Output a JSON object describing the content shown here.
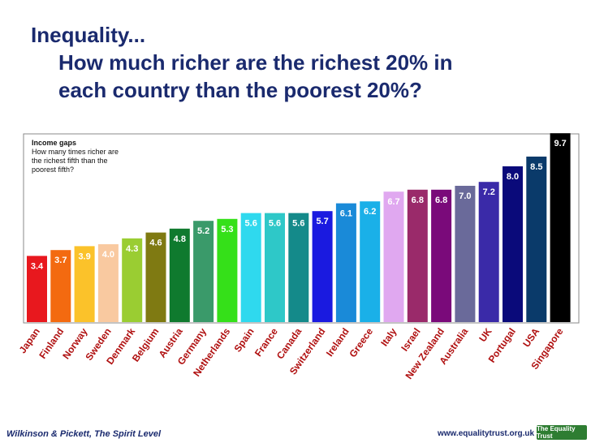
{
  "title": {
    "line1": "Inequality...",
    "line2": "How much richer are the richest 20% in",
    "line3": "each country than the poorest 20%?"
  },
  "legend": {
    "title": "Income gaps",
    "desc": "How many times richer are the richest fifth than the poorest fifth?"
  },
  "footer": {
    "source": "Wilkinson & Pickett, The Spirit Level",
    "url": "www.equalitytrust.org.uk",
    "logo": "The Equality Trust"
  },
  "chart_data": {
    "type": "bar",
    "title": "Income gaps",
    "ylabel": "",
    "xlabel": "",
    "ylim": [
      0,
      10
    ],
    "grid": false,
    "categories": [
      "Japan",
      "Finland",
      "Norway",
      "Sweden",
      "Denmark",
      "Belgium",
      "Austria",
      "Germany",
      "Netherlands",
      "Spain",
      "France",
      "Canada",
      "Switzerland",
      "Ireland",
      "Greece",
      "Italy",
      "Israel",
      "New Zealand",
      "Australia",
      "UK",
      "Portugal",
      "USA",
      "Singapore"
    ],
    "values": [
      3.4,
      3.7,
      3.9,
      4.0,
      4.3,
      4.6,
      4.8,
      5.2,
      5.3,
      5.6,
      5.6,
      5.6,
      5.7,
      6.1,
      6.2,
      6.7,
      6.8,
      6.8,
      7.0,
      7.2,
      8.0,
      8.5,
      9.7
    ],
    "colors": [
      "#e8181e",
      "#f36a10",
      "#fbc22a",
      "#f9c9a0",
      "#9acd32",
      "#7f7a12",
      "#0f7a2e",
      "#3a9a6a",
      "#35e019",
      "#2fd9ee",
      "#2ec8c8",
      "#148a8a",
      "#1a1ae0",
      "#1a8ad8",
      "#1ab0e8",
      "#e0a8f0",
      "#9a2a6a",
      "#7a0a7a",
      "#6a6a9a",
      "#3a2aa8",
      "#0a0a7a",
      "#0a3a6a",
      "#000000"
    ],
    "data_labels": [
      "3.4",
      "3.7",
      "3.9",
      "4.0",
      "4.3",
      "4.6",
      "4.8",
      "5.2",
      "5.3",
      "5.6",
      "5.6",
      "5.6",
      "5.7",
      "6.1",
      "6.2",
      "6.7",
      "6.8",
      "6.8",
      "7.0",
      "7.2",
      "8.0",
      "8.5",
      "9.7"
    ]
  }
}
